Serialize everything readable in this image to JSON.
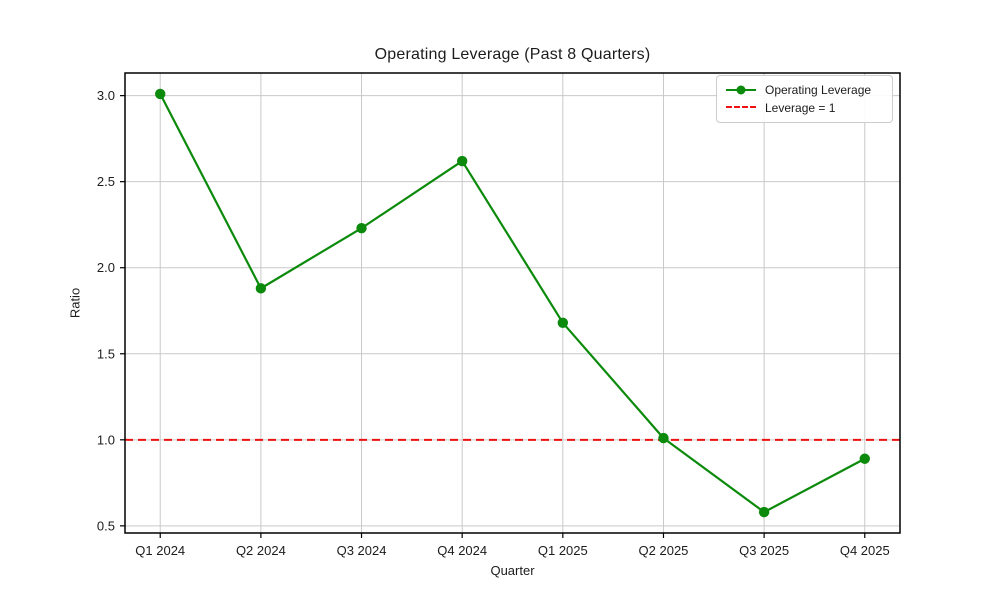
{
  "chart_data": {
    "type": "line",
    "title": "Operating Leverage (Past 8 Quarters)",
    "xlabel": "Quarter",
    "ylabel": "Ratio",
    "categories": [
      "Q1 2024",
      "Q2 2024",
      "Q3 2024",
      "Q4 2024",
      "Q1 2025",
      "Q2 2025",
      "Q3 2025",
      "Q4 2025"
    ],
    "series": [
      {
        "name": "Operating Leverage",
        "values": [
          3.01,
          1.88,
          2.23,
          2.62,
          1.68,
          1.01,
          0.58,
          0.89
        ],
        "color": "#0b8a0b",
        "marker": "circle"
      }
    ],
    "reference_line": {
      "label": "Leverage = 1",
      "value": 1.0,
      "color": "#ee1111",
      "style": "dashed"
    },
    "y_ticks": [
      0.5,
      1.0,
      1.5,
      2.0,
      2.5,
      3.0
    ],
    "ylim": [
      0.4585,
      3.1315
    ],
    "xlim": [
      -0.35,
      7.35
    ],
    "grid": true,
    "legend_position": "upper right",
    "colors": {
      "grid": "#c9c9c9",
      "spine": "#000000",
      "text": "#1c1c1c",
      "background": "#ffffff"
    }
  }
}
